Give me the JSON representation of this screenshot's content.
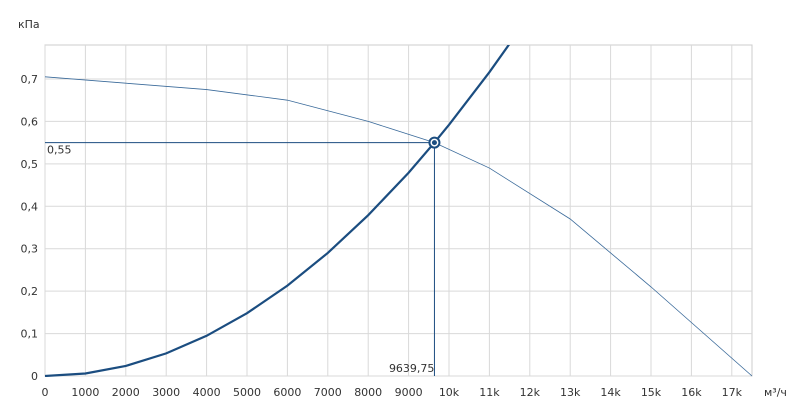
{
  "chart_data": {
    "type": "line",
    "y_axis_label": "кПа",
    "x_axis_label": "м³/ч",
    "xlim": [
      0,
      17500
    ],
    "ylim": [
      0,
      0.78
    ],
    "xticks": [
      0,
      1000,
      2000,
      3000,
      4000,
      5000,
      6000,
      7000,
      8000,
      9000,
      {
        "value": 10000,
        "label": "10k"
      },
      {
        "value": 11000,
        "label": "11k"
      },
      {
        "value": 12000,
        "label": "12k"
      },
      {
        "value": 13000,
        "label": "13k"
      },
      {
        "value": 14000,
        "label": "14k"
      },
      {
        "value": 15000,
        "label": "15k"
      },
      {
        "value": 16000,
        "label": "16k"
      },
      {
        "value": 17000,
        "label": "17k"
      }
    ],
    "yticks": [
      0,
      {
        "value": 0.1,
        "label": "0,1"
      },
      {
        "value": 0.2,
        "label": "0,2"
      },
      {
        "value": 0.3,
        "label": "0,3"
      },
      {
        "value": 0.4,
        "label": "0,4"
      },
      {
        "value": 0.5,
        "label": "0,5"
      },
      {
        "value": 0.6,
        "label": "0,6"
      },
      {
        "value": 0.7,
        "label": "0,7"
      }
    ],
    "grid": true,
    "series": [
      {
        "color": "#3a6a9a",
        "width": 0.8,
        "x": [
          0,
          2000,
          4000,
          6000,
          8000,
          9639.75,
          11000,
          13000,
          15000,
          17500
        ],
        "values": [
          0.705,
          0.69,
          0.675,
          0.65,
          0.6,
          0.55,
          0.49,
          0.37,
          0.21,
          0
        ]
      },
      {
        "color": "#1b4d80",
        "width": 2.2,
        "x": [
          0,
          1000,
          2000,
          3000,
          4000,
          5000,
          6000,
          7000,
          8000,
          9000,
          9639.75,
          10000,
          11000,
          11500
        ],
        "values": [
          0,
          0.0059,
          0.0237,
          0.0533,
          0.0947,
          0.148,
          0.213,
          0.29,
          0.379,
          0.479,
          0.55,
          0.592,
          0.716,
          0.783
        ]
      }
    ],
    "operating_point": {
      "x": 9639.75,
      "y": 0.55,
      "x_label": "9639,75",
      "y_label": "0,55",
      "color": "#1b4d80"
    }
  }
}
